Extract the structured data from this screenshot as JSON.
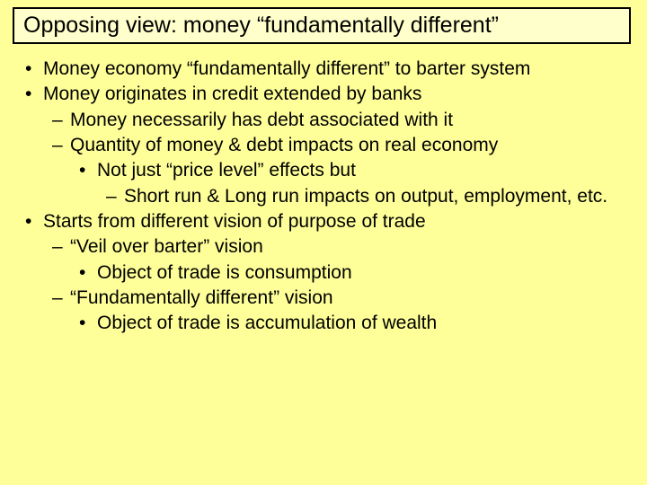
{
  "slide": {
    "background_color": "#ffff99",
    "title_box": {
      "border_color": "#000000",
      "background_color": "#ffffcc",
      "text": "Opposing view: money “fundamentally different”",
      "fontsize": 25
    },
    "body_fontsize": 21,
    "text_color": "#000000",
    "font_family": "Comic Sans MS",
    "bullets": [
      {
        "level": 1,
        "text": "Money economy “fundamentally different” to barter system"
      },
      {
        "level": 1,
        "text": "Money originates in credit extended by banks"
      },
      {
        "level": 2,
        "text": "Money necessarily has debt associated with it"
      },
      {
        "level": 2,
        "text": "Quantity of money & debt impacts on real economy"
      },
      {
        "level": 3,
        "text": "Not just “price level” effects but"
      },
      {
        "level": 4,
        "text": "Short run & Long run impacts on output, employment, etc."
      },
      {
        "level": 1,
        "text": "Starts from different vision of purpose of trade"
      },
      {
        "level": 2,
        "text": "“Veil over barter” vision"
      },
      {
        "level": 3,
        "text": "Object of trade is consumption"
      },
      {
        "level": 2,
        "text": "“Fundamentally different” vision"
      },
      {
        "level": 3,
        "text": "Object of trade is accumulation of wealth"
      }
    ]
  }
}
